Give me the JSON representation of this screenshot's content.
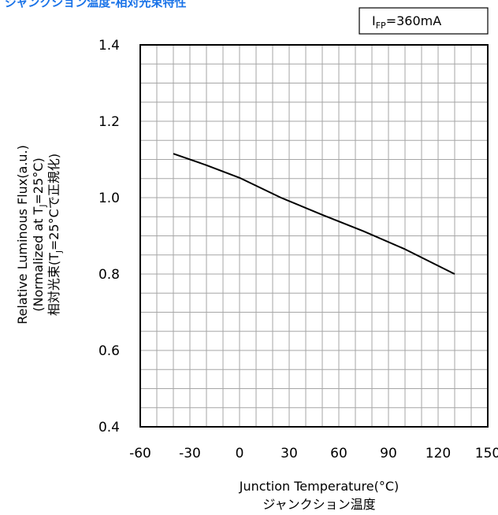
{
  "page": {
    "title": "ジャンクション温度-相対光束特性"
  },
  "condition": {
    "main": "I",
    "sub": "FP",
    "rest": "=360mA"
  },
  "colors": {
    "title": "#1a73e8",
    "grid": "#a6a6a6",
    "frame": "#000000",
    "line": "#000000"
  },
  "chart_data": {
    "type": "line",
    "xlabel": "Junction Temperature(°C)",
    "xlabel_jp": "ジャンクション温度",
    "ylabel": {
      "line1": "Relative Luminous Flux(a.u.)",
      "line2_pre": "(Normalized at T",
      "line2_sub": "J",
      "line2_post": "=25°C)",
      "line3_pre": "相対光束(T",
      "line3_sub": "J",
      "line3_post": "=25°Cで正規化)"
    },
    "xlim": [
      -60,
      150
    ],
    "ylim": [
      0.4,
      1.4
    ],
    "x_ticks": [
      -60,
      -30,
      0,
      30,
      60,
      90,
      120,
      150
    ],
    "x_tick_labels": [
      "-60",
      "-30",
      "0",
      "30",
      "60",
      "90",
      "120",
      "150"
    ],
    "y_ticks": [
      0.4,
      0.6,
      0.8,
      1.0,
      1.2,
      1.4
    ],
    "y_tick_labels": [
      "0.4",
      "0.6",
      "0.8",
      "1.0",
      "1.2",
      "1.4"
    ],
    "grid": true,
    "series": [
      {
        "x": [
          -40,
          -20,
          0,
          25,
          50,
          75,
          100,
          130
        ],
        "y": [
          1.115,
          1.085,
          1.052,
          1.0,
          0.955,
          0.912,
          0.865,
          0.8
        ]
      }
    ]
  }
}
